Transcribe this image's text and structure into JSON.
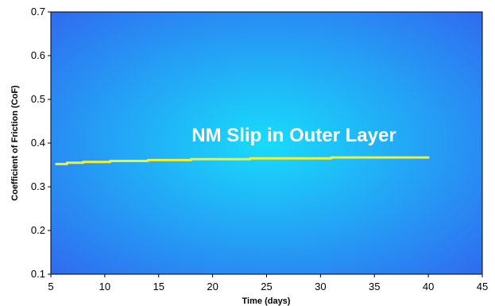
{
  "chart_data": {
    "type": "line",
    "title": "",
    "xlabel": "Time (days)",
    "ylabel": "Coefficient of Friction (CoF)",
    "xlim": [
      5,
      45
    ],
    "ylim": [
      0.1,
      0.7
    ],
    "x_ticks": [
      5,
      10,
      15,
      20,
      25,
      30,
      35,
      40,
      45
    ],
    "y_ticks": [
      0.1,
      0.2,
      0.3,
      0.4,
      0.5,
      0.6,
      0.7
    ],
    "x_tick_labels": [
      "5",
      "10",
      "15",
      "20",
      "25",
      "30",
      "35",
      "40",
      "45"
    ],
    "y_tick_labels": [
      "0.1",
      "0.2",
      "0.3",
      "0.4",
      "0.5",
      "0.6",
      "0.7"
    ],
    "grid": false,
    "legend": "none",
    "annotation": "NM Slip in Outer Layer",
    "series": [
      {
        "color": "#f5f032",
        "x": [
          5.5,
          6.5,
          6.5,
          8,
          8,
          10.5,
          10.5,
          14,
          14,
          18,
          18,
          23.5,
          23.5,
          31,
          31,
          40
        ],
        "y": [
          0.352,
          0.352,
          0.355,
          0.355,
          0.357,
          0.357,
          0.359,
          0.359,
          0.361,
          0.361,
          0.363,
          0.363,
          0.365,
          0.365,
          0.367,
          0.367
        ]
      }
    ],
    "colors": {
      "plot_center": "#18dcfb",
      "plot_edge": "#2f6cf0",
      "border": "#000000",
      "annotation": "#ffffff"
    }
  }
}
